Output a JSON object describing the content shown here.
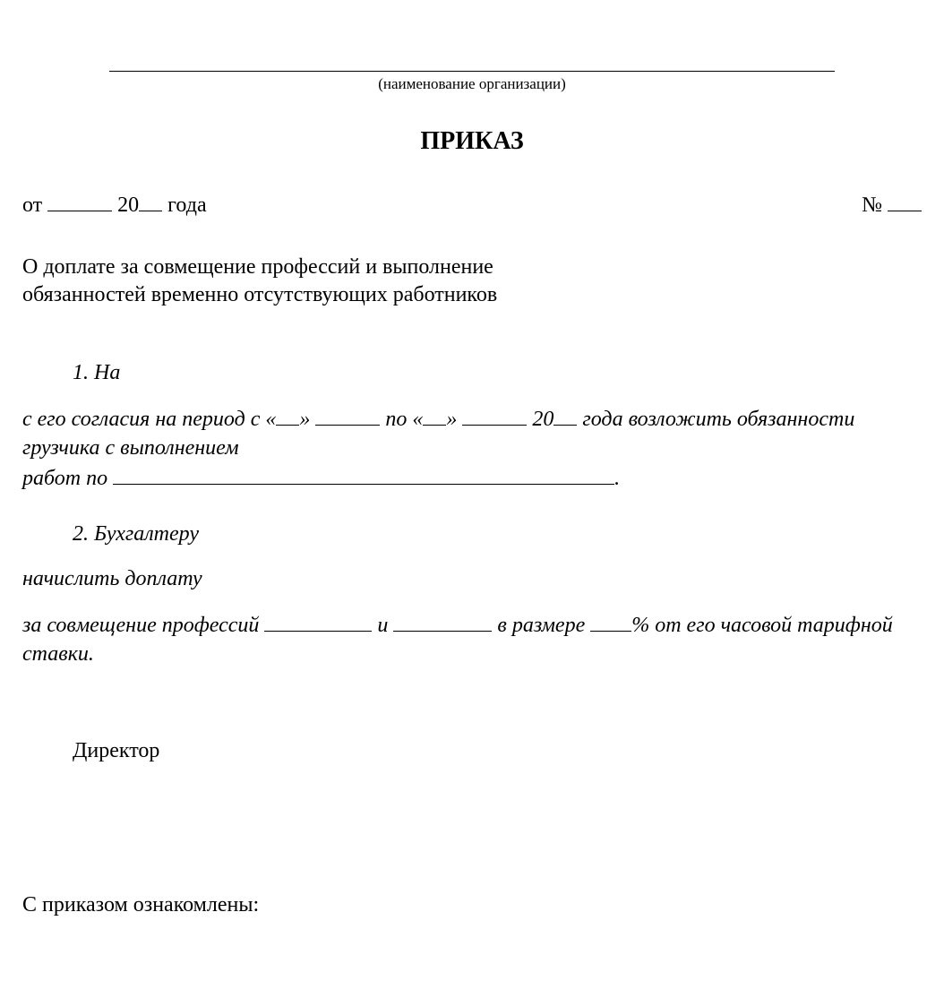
{
  "colors": {
    "text": "#000000",
    "background": "#ffffff",
    "line": "#000000"
  },
  "typography": {
    "base_font": "Times New Roman",
    "title_size_pt": 21,
    "body_size_pt": 18,
    "caption_size_pt": 13
  },
  "header": {
    "org_caption": "(наименование организации)",
    "title": "ПРИКАЗ"
  },
  "date_row": {
    "prefix": "от",
    "century": "20",
    "year_suffix": "года",
    "number_label": "№"
  },
  "subject": {
    "line1": "О доплате за совмещение профессий и выполнение",
    "line2": " обязанностей временно отсутствующих работников"
  },
  "clause1": {
    "opener": "1. На",
    "consent_prefix": "с его согласия на период с «",
    "quote_close1": "»",
    "between": "по «",
    "quote_close2": "»",
    "century": "20",
    "year_tail": "года возложить обязанности",
    "line2": "грузчика с выполнением",
    "line3_prefix": "работ по",
    "line3_suffix": "."
  },
  "clause2": {
    "opener": "2. Бухгалтеру",
    "line2": "начислить доплату",
    "line3_prefix": "за совмещение профессий",
    "line3_sep": "и",
    "line3_mid": "в размере",
    "line3_percent": "% от его часовой тарифной",
    "line4": "ставки."
  },
  "signature": {
    "role": "Директор"
  },
  "acknowledgement": {
    "label": "С приказом ознакомлены:"
  },
  "blanks": {
    "date_day_width": 72,
    "year_width": 26,
    "number_width": 38,
    "day_quote_width": 26,
    "month_width": 72,
    "works_width": 560,
    "profession1_width": 120,
    "profession2_width": 110,
    "percent_width": 46
  }
}
